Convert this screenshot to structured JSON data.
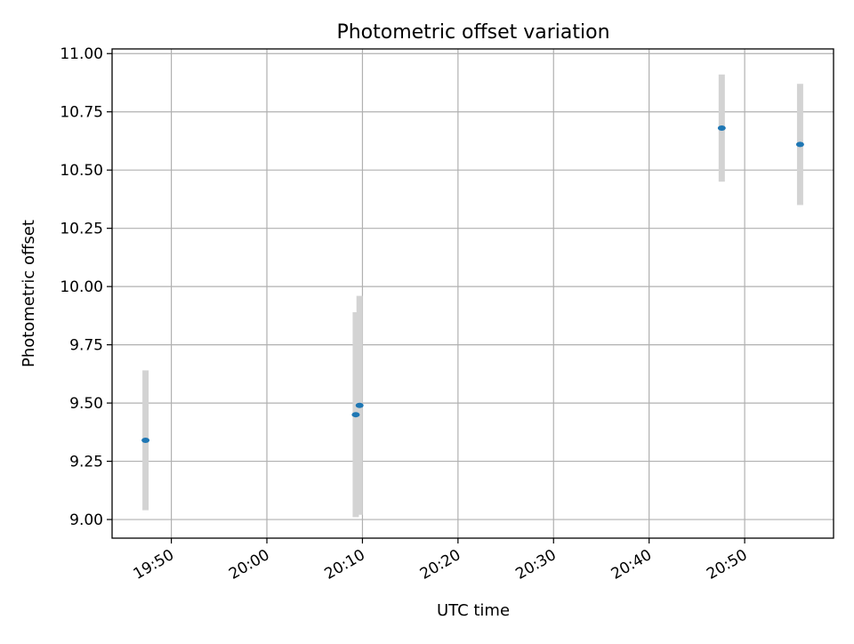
{
  "chart_data": {
    "type": "scatter",
    "title": "Photometric offset variation",
    "xlabel": "UTC time",
    "ylabel": "Photometric offset",
    "x_ticks": [
      "19:50",
      "20:00",
      "20:10",
      "20:20",
      "20:30",
      "20:40",
      "20:50"
    ],
    "y_ticks": [
      "9.00",
      "9.25",
      "9.50",
      "9.75",
      "10.00",
      "10.25",
      "10.50",
      "10.75",
      "11.00"
    ],
    "xlim": [
      "19:43.8",
      "20:59.3"
    ],
    "ylim": [
      8.92,
      11.02
    ],
    "grid": true,
    "points": [
      {
        "time": "19:47.3",
        "y": 9.34,
        "y_low": 9.04,
        "y_high": 9.64
      },
      {
        "time": "20:09.3",
        "y": 9.45,
        "y_low": 9.01,
        "y_high": 9.89
      },
      {
        "time": "20:09.7",
        "y": 9.49,
        "y_low": 9.02,
        "y_high": 9.96
      },
      {
        "time": "20:47.6",
        "y": 10.68,
        "y_low": 10.45,
        "y_high": 10.91
      },
      {
        "time": "20:55.8",
        "y": 10.61,
        "y_low": 10.35,
        "y_high": 10.87
      }
    ],
    "colors": {
      "point": "#1f77b4",
      "error_bar": "#d3d3d3",
      "grid": "#b0b0b0"
    }
  }
}
